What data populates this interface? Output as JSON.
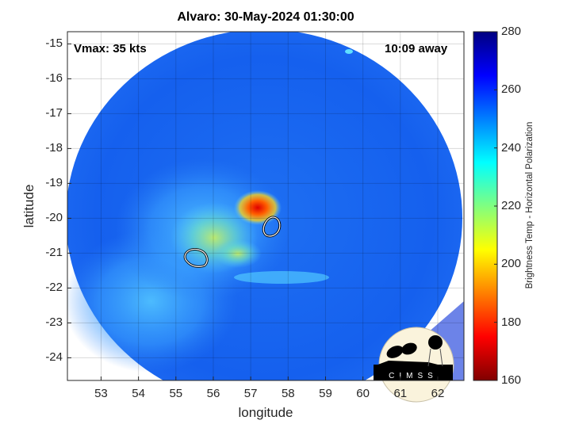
{
  "chart_data": {
    "type": "heatmap",
    "title": "Alvaro: 30-May-2024 01:30:00",
    "xlabel": "longitude",
    "ylabel": "latitude",
    "xlim": [
      52.1,
      62.7
    ],
    "ylim": [
      -24.65,
      -14.65
    ],
    "xticks": [
      "53",
      "54",
      "55",
      "56",
      "57",
      "58",
      "59",
      "60",
      "61",
      "62"
    ],
    "yticks": [
      "-15",
      "-16",
      "-17",
      "-18",
      "-19",
      "-20",
      "-21",
      "-22",
      "-23",
      "-24"
    ],
    "grid": true,
    "colorbar": {
      "label": "Brightness Temp - Horizontal Polarization",
      "range": [
        160,
        280
      ],
      "ticks": [
        "280",
        "260",
        "240",
        "220",
        "200",
        "180",
        "160"
      ],
      "colormap": "jet"
    },
    "annotations": {
      "vmax": "Vmax: 35 kts",
      "away": "10:09 away"
    },
    "features": {
      "coldest_core_lon_lat": [
        57.2,
        -19.5
      ],
      "contours_lon_lat": [
        [
          57.55,
          -20.25
        ],
        [
          55.5,
          -21.2
        ]
      ]
    }
  },
  "logo": {
    "text": "CIMSS"
  }
}
